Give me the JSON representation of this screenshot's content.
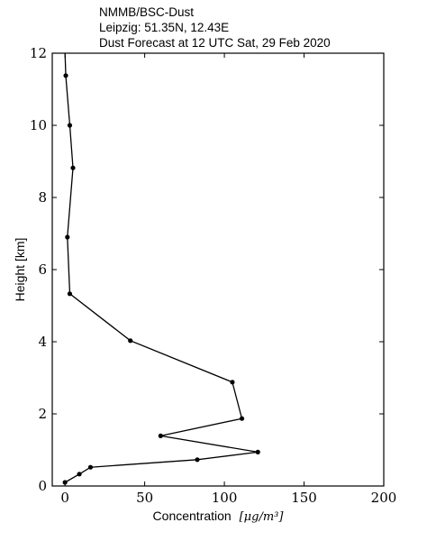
{
  "chart_data": {
    "type": "line",
    "title_lines": [
      "NMMB/BSC-Dust",
      "Leipzig: 51.35N, 12.43E",
      "Dust Forecast at 12 UTC Sat, 29 Feb 2020"
    ],
    "xlabel": "Concentration",
    "xlabel_unit": "[μg/m³]",
    "ylabel": "Height [km]",
    "xlim": [
      -8,
      200
    ],
    "ylim": [
      0,
      12
    ],
    "xticks": [
      0,
      50,
      100,
      150,
      200
    ],
    "yticks": [
      0,
      2,
      4,
      6,
      8,
      10,
      12
    ],
    "grid": false,
    "series": [
      {
        "points": [
          {
            "x": 0,
            "y": 0.1
          },
          {
            "x": 9,
            "y": 0.33
          },
          {
            "x": 16,
            "y": 0.52
          },
          {
            "x": 83,
            "y": 0.73
          },
          {
            "x": 121,
            "y": 0.94
          },
          {
            "x": 60,
            "y": 1.39
          },
          {
            "x": 111,
            "y": 1.87
          },
          {
            "x": 105,
            "y": 2.88
          },
          {
            "x": 41,
            "y": 4.03
          },
          {
            "x": 3,
            "y": 5.33
          },
          {
            "x": 1.5,
            "y": 6.9
          },
          {
            "x": 5,
            "y": 8.82
          },
          {
            "x": 3,
            "y": 10.0
          },
          {
            "x": 0.5,
            "y": 11.38
          },
          {
            "x": 0,
            "y": 12.0
          }
        ],
        "marker_last": false
      }
    ]
  }
}
